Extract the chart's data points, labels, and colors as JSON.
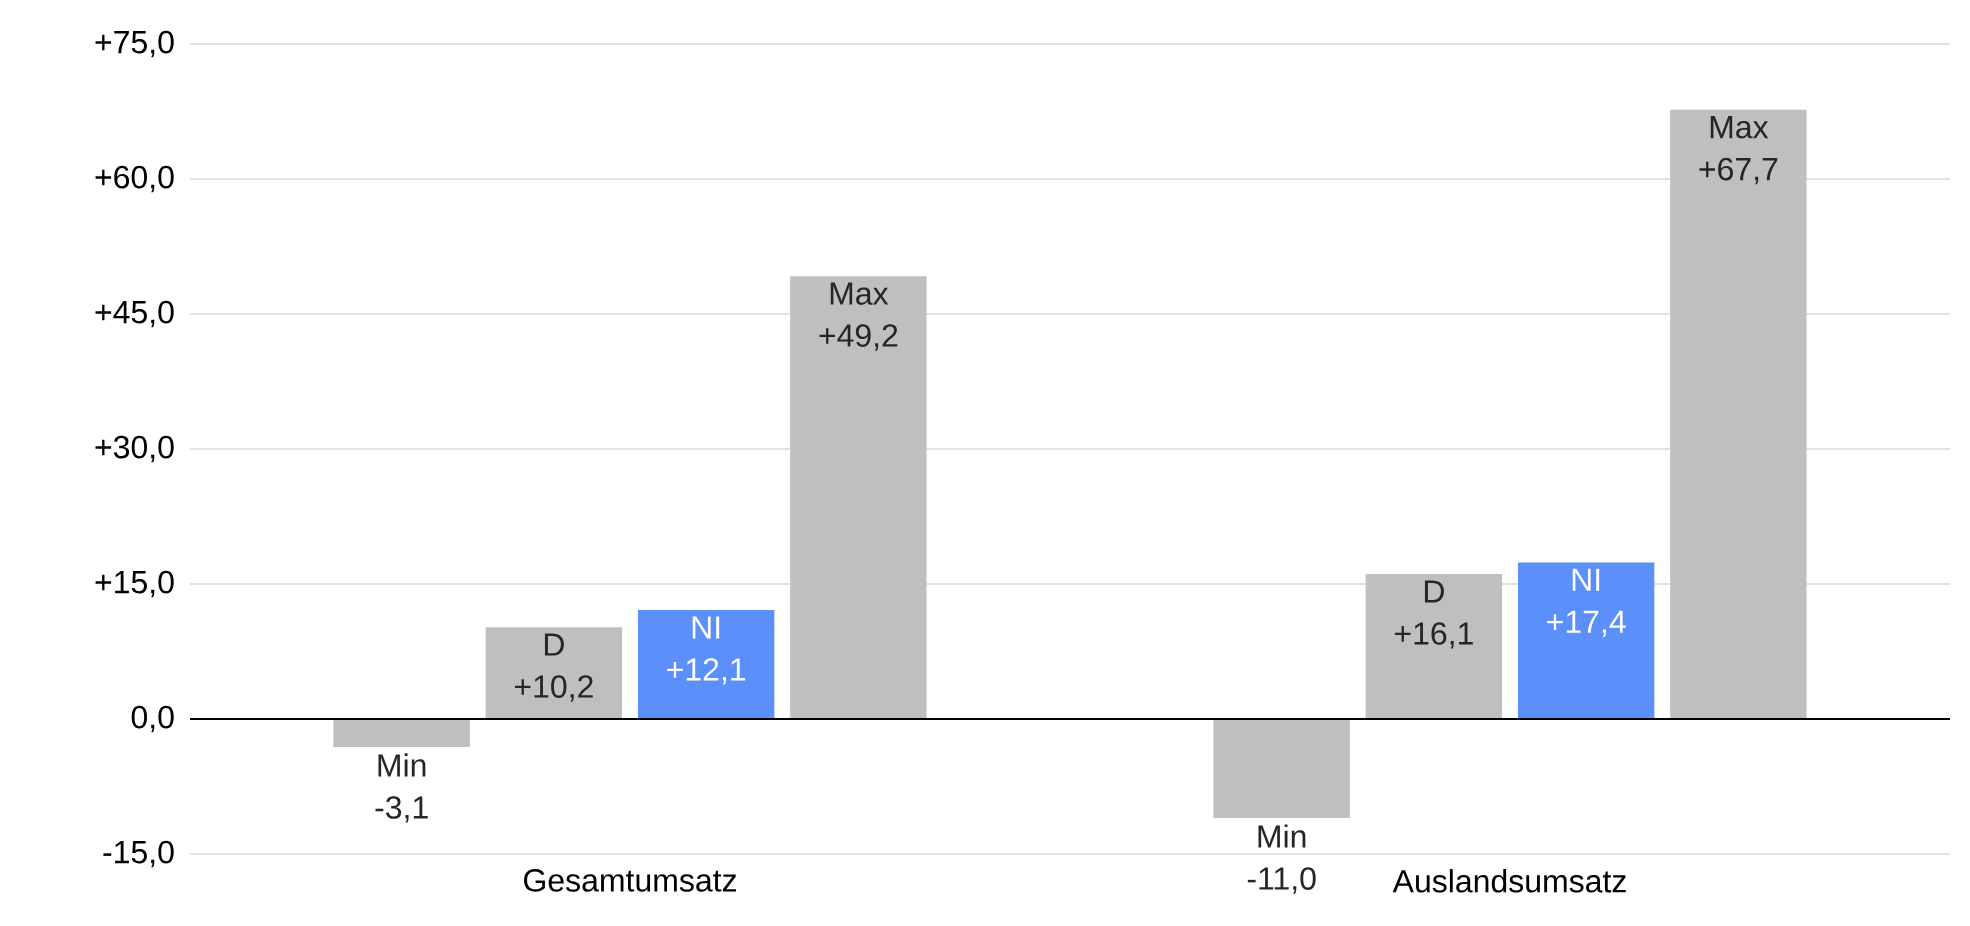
{
  "chart_data": {
    "type": "bar",
    "categories": [
      "Gesamtumsatz",
      "Auslandsumsatz"
    ],
    "series": [
      {
        "name": "Min",
        "color": "#bfbfbf",
        "values": [
          -3.1,
          -11.0
        ],
        "value_labels": [
          "-3,1",
          "-11,0"
        ]
      },
      {
        "name": "D",
        "color": "#bfbfbf",
        "values": [
          10.2,
          16.1
        ],
        "value_labels": [
          "+10,2",
          "+16,1"
        ]
      },
      {
        "name": "NI",
        "color": "#5b8ff9",
        "values": [
          12.1,
          17.4
        ],
        "value_labels": [
          "+12,1",
          "+17,4"
        ]
      },
      {
        "name": "Max",
        "color": "#bfbfbf",
        "values": [
          49.2,
          67.7
        ],
        "value_labels": [
          "+49,2",
          "+67,7"
        ]
      }
    ],
    "ylim": [
      -15,
      75
    ],
    "yticks": [
      {
        "value": -15,
        "label": "-15,0"
      },
      {
        "value": 0,
        "label": "0,0"
      },
      {
        "value": 15,
        "label": "+15,0"
      },
      {
        "value": 30,
        "label": "+30,0"
      },
      {
        "value": 45,
        "label": "+45,0"
      },
      {
        "value": 60,
        "label": "+60,0"
      },
      {
        "value": 75,
        "label": "+75,0"
      }
    ],
    "grid": "y",
    "legend": false
  }
}
